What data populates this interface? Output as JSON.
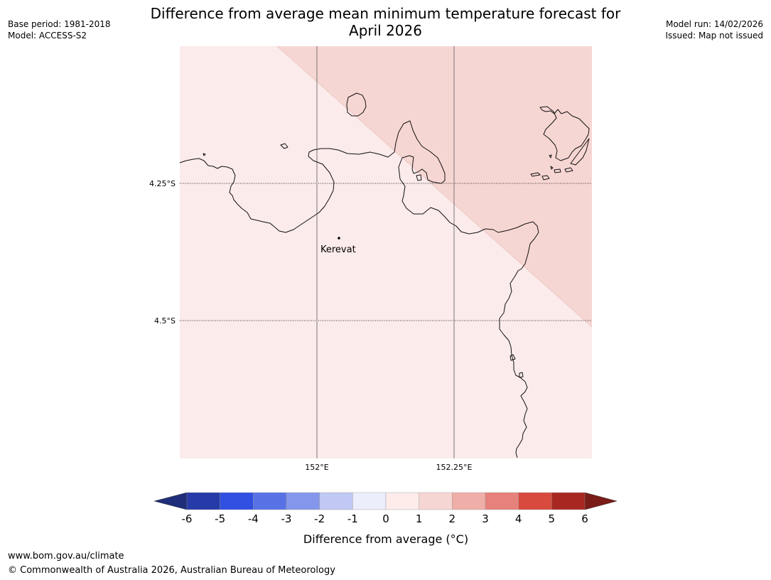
{
  "header": {
    "base_period": "Base period: 1981-2018",
    "model": "Model: ACCESS-S2",
    "title_line1": "Difference from average mean minimum temperature forecast for",
    "title_line2": "April 2026",
    "model_run": "Model run: 14/02/2026",
    "issued": "Issued: Map not issued"
  },
  "map": {
    "latitude_labels": [
      "4.25°S",
      "4.5°S"
    ],
    "longitude_labels": [
      "152°E",
      "152.25°E"
    ],
    "place": {
      "name": "Kerevat"
    },
    "region_colors": {
      "range_0_to_1": "#fbebea",
      "range_1_to_2": "#f6d6d3"
    }
  },
  "colorbar": {
    "ticks": [
      "-6",
      "-5",
      "-4",
      "-3",
      "-2",
      "-1",
      "0",
      "1",
      "2",
      "3",
      "4",
      "5",
      "6"
    ],
    "colors": [
      "#263aa8",
      "#314fe0",
      "#5872e6",
      "#8497ec",
      "#c0c8f3",
      "#eceefc",
      "#fdecea",
      "#f6d6d3",
      "#efaea7",
      "#e6827b",
      "#d94a3e",
      "#a82720"
    ],
    "under_color": "#1f2e7a",
    "over_color": "#7a1c17",
    "label": "Difference from average (°C)"
  },
  "footer": {
    "website": "www.bom.gov.au/climate",
    "copyright": "© Commonwealth of Australia 2026, Australian Bureau of Meteorology"
  }
}
